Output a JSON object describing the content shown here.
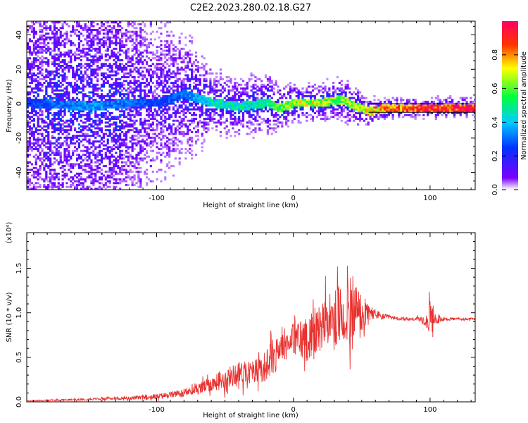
{
  "title": "C2E2.2023.280.02.18.G27",
  "colors": {
    "signal_line": "#e8312f",
    "axis": "#000000"
  },
  "chart_data": [
    {
      "type": "heatmap",
      "title": "C2E2.2023.280.02.18.G27",
      "xlabel": "Height of straight line (km)",
      "ylabel": "Frequency (Hz)",
      "xlim": [
        -195,
        133
      ],
      "ylim": [
        -50,
        48
      ],
      "xticks": [
        "-100",
        "0",
        "100"
      ],
      "yticks": [
        "-40",
        "-20",
        "0",
        "20",
        "40"
      ],
      "colorbar": {
        "label": "Normalized spectral amplitude",
        "range": [
          0.0,
          1.0
        ],
        "ticks": [
          "0.0",
          "0.2",
          "0.4",
          "0.6",
          "0.8"
        ],
        "colormap": [
          "#ffffff",
          "#7a00ff",
          "#0033ff",
          "#00ccff",
          "#00ff40",
          "#ffff00",
          "#ff3300",
          "#ff0066"
        ]
      },
      "band": [
        {
          "x": -195,
          "f": 0,
          "amp": 0.25,
          "spread": 48
        },
        {
          "x": -150,
          "f": -2,
          "amp": 0.35,
          "spread": 45
        },
        {
          "x": -120,
          "f": 0,
          "amp": 0.3,
          "spread": 40
        },
        {
          "x": -100,
          "f": 0,
          "amp": 0.25,
          "spread": 25
        },
        {
          "x": -80,
          "f": 5,
          "amp": 0.3,
          "spread": 18
        },
        {
          "x": -60,
          "f": 0,
          "amp": 0.45,
          "spread": 8
        },
        {
          "x": -40,
          "f": -2,
          "amp": 0.45,
          "spread": 7
        },
        {
          "x": -20,
          "f": 0,
          "amp": 0.5,
          "spread": 7
        },
        {
          "x": -10,
          "f": -3,
          "amp": 0.6,
          "spread": 5
        },
        {
          "x": 0,
          "f": 0,
          "amp": 0.65,
          "spread": 4
        },
        {
          "x": 20,
          "f": 0,
          "amp": 0.65,
          "spread": 4
        },
        {
          "x": 35,
          "f": 2,
          "amp": 0.6,
          "spread": 5
        },
        {
          "x": 45,
          "f": -2,
          "amp": 0.65,
          "spread": 4
        },
        {
          "x": 55,
          "f": -5,
          "amp": 0.7,
          "spread": 3
        },
        {
          "x": 70,
          "f": -3,
          "amp": 0.8,
          "spread": 2
        },
        {
          "x": 100,
          "f": -3,
          "amp": 0.9,
          "spread": 2
        },
        {
          "x": 133,
          "f": -3,
          "amp": 0.95,
          "spread": 2
        }
      ]
    },
    {
      "type": "line",
      "title": "",
      "xlabel": "Height of straight line (km)",
      "ylabel": "SNR (10 * v/v)",
      "y_multiplier": "(x10⁴)",
      "xlim": [
        -195,
        133
      ],
      "ylim": [
        0.0,
        1.9
      ],
      "xticks": [
        "-100",
        "0",
        "100"
      ],
      "yticks": [
        "0.0",
        "0.5",
        "1.0",
        "1.5"
      ],
      "series": [
        {
          "color": "#e8312f",
          "x": [
            -195,
            -170,
            -150,
            -120,
            -100,
            -90,
            -80,
            -70,
            -60,
            -50,
            -40,
            -30,
            -20,
            -15,
            -10,
            -5,
            0,
            5,
            10,
            15,
            20,
            25,
            30,
            35,
            40,
            43,
            45,
            50,
            55,
            60,
            65,
            70,
            80,
            90,
            97,
            100,
            103,
            110,
            120,
            133
          ],
          "mean": [
            0.01,
            0.02,
            0.03,
            0.04,
            0.06,
            0.08,
            0.1,
            0.14,
            0.2,
            0.26,
            0.32,
            0.34,
            0.4,
            0.5,
            0.6,
            0.66,
            0.72,
            0.7,
            0.72,
            0.75,
            0.85,
            0.88,
            0.92,
            0.97,
            1.02,
            1.05,
            1.0,
            0.95,
            0.98,
            0.98,
            0.96,
            0.95,
            0.93,
            0.93,
            0.92,
            0.92,
            0.92,
            0.93,
            0.93,
            0.93
          ],
          "amplitude": [
            0.01,
            0.015,
            0.02,
            0.03,
            0.05,
            0.06,
            0.07,
            0.1,
            0.14,
            0.18,
            0.22,
            0.22,
            0.3,
            0.35,
            0.35,
            0.25,
            0.3,
            0.4,
            0.45,
            0.45,
            0.45,
            0.48,
            0.55,
            0.6,
            0.7,
            0.8,
            0.6,
            0.45,
            0.2,
            0.1,
            0.06,
            0.04,
            0.03,
            0.03,
            0.12,
            0.35,
            0.12,
            0.03,
            0.02,
            0.02
          ]
        }
      ]
    }
  ]
}
